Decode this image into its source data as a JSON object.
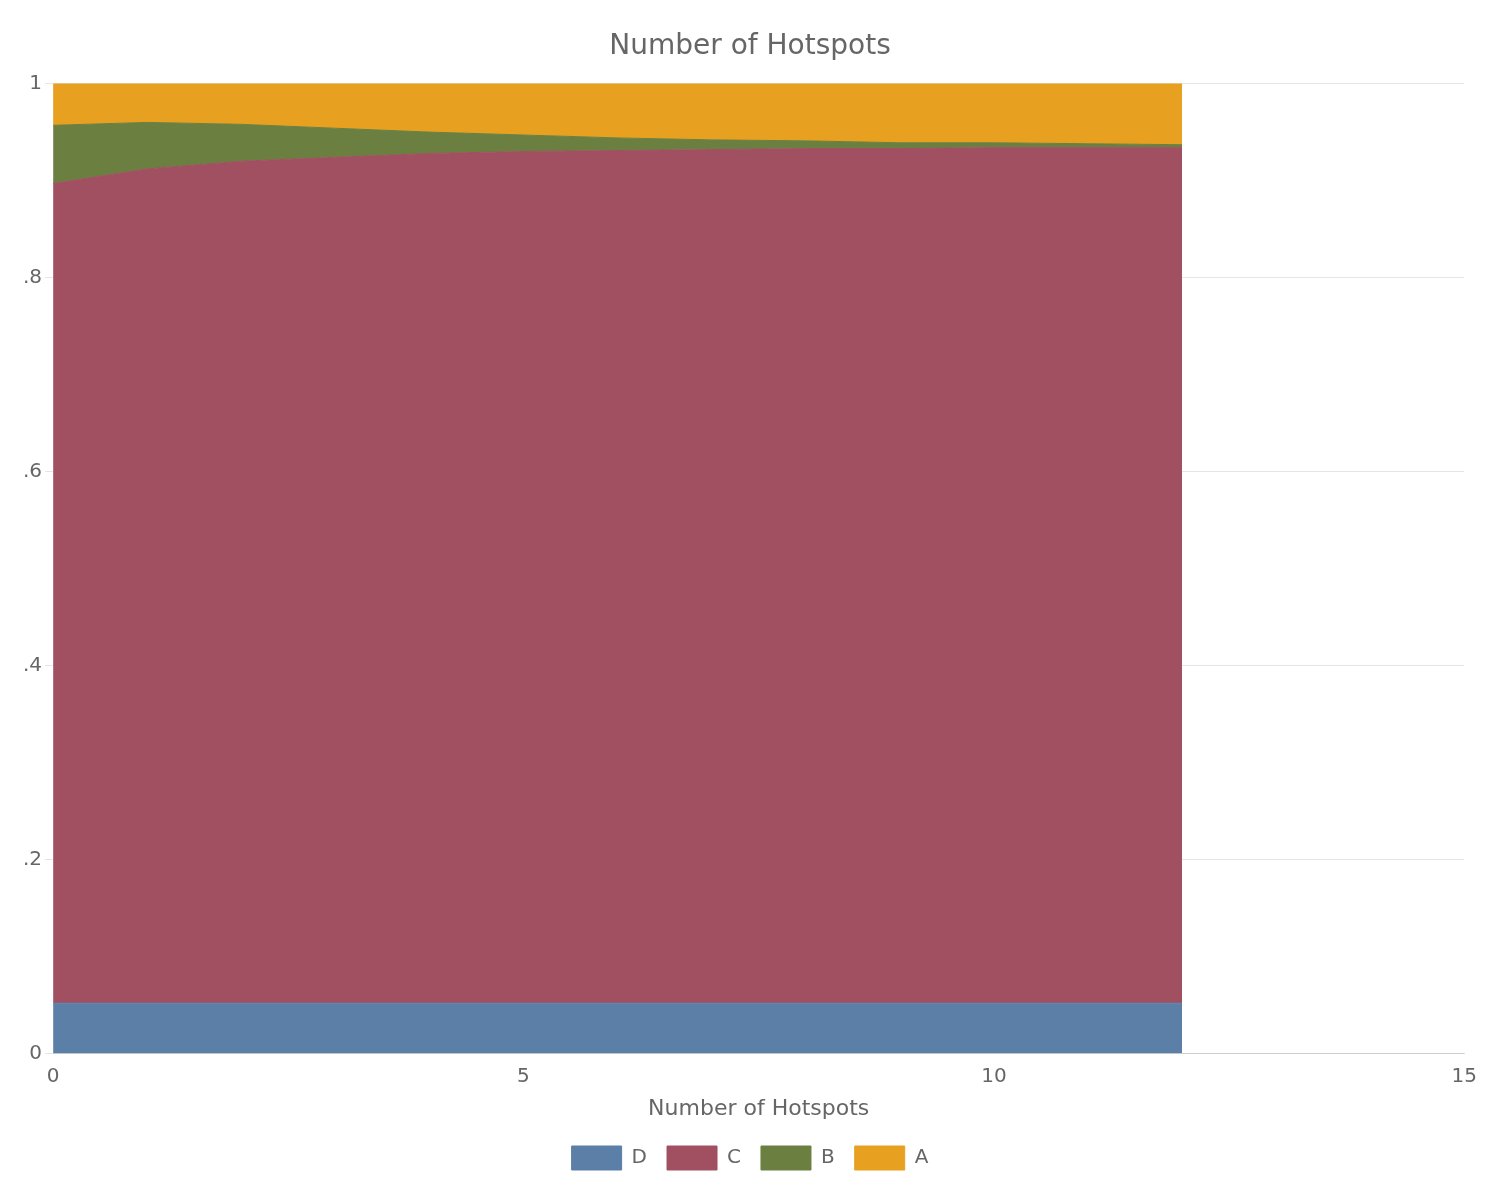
{
  "chart_data": {
    "type": "area",
    "stacked": true,
    "title": "Number of Hotspots",
    "xlabel": "Number of Hotspots",
    "x": [
      0,
      1,
      2,
      3,
      4,
      5,
      6,
      7,
      8,
      9,
      10,
      11,
      12
    ],
    "series": [
      {
        "name": "D",
        "color": "#5b7fa6",
        "values": [
          0.052,
          0.052,
          0.052,
          0.052,
          0.052,
          0.052,
          0.052,
          0.052,
          0.052,
          0.052,
          0.052,
          0.052,
          0.052
        ]
      },
      {
        "name": "C",
        "color": "#a05060",
        "values": [
          0.845,
          0.86,
          0.868,
          0.872,
          0.876,
          0.878,
          0.879,
          0.88,
          0.881,
          0.881,
          0.882,
          0.882,
          0.882
        ]
      },
      {
        "name": "B",
        "color": "#6b8040",
        "values": [
          0.06,
          0.048,
          0.038,
          0.03,
          0.022,
          0.017,
          0.013,
          0.01,
          0.008,
          0.006,
          0.005,
          0.004,
          0.003
        ]
      },
      {
        "name": "A",
        "color": "#e8a020",
        "values": [
          0.043,
          0.04,
          0.042,
          0.046,
          0.05,
          0.053,
          0.056,
          0.058,
          0.059,
          0.061,
          0.061,
          0.062,
          0.063
        ]
      }
    ],
    "xlim": [
      0,
      15
    ],
    "xticks": [
      0,
      5,
      10,
      15
    ],
    "ylim": [
      0,
      1
    ],
    "yticks": [
      0,
      {
        "value": 0.2,
        "label": ".2"
      },
      {
        "value": 0.4,
        "label": ".4"
      },
      {
        "value": 0.6,
        "label": ".6"
      },
      {
        "value": 0.8,
        "label": ".8"
      },
      1
    ],
    "grid": "y",
    "legend": "bottom"
  }
}
